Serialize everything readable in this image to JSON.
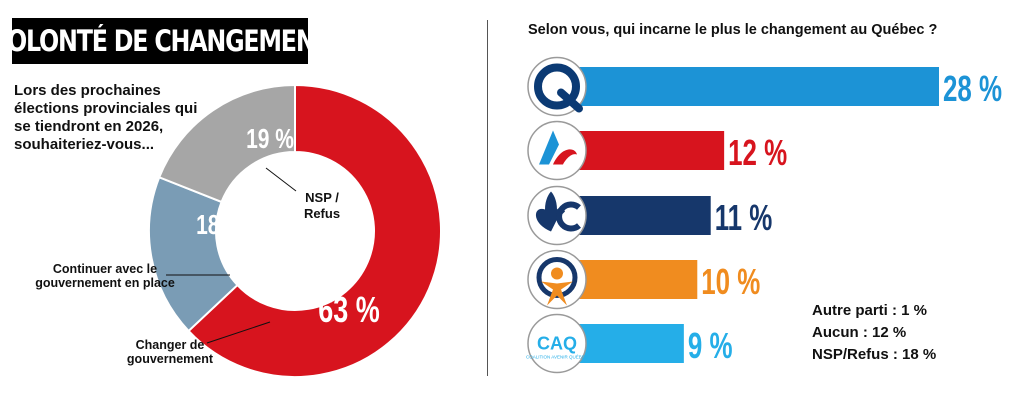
{
  "left": {
    "title": "VOLONTÉ DE CHANGEMENT",
    "question": "Lors des prochaines élections provinciales qui se tiendront en 2026, souhaiteriez-vous...",
    "labels": {
      "nsp": "NSP / Refus",
      "continuer": "Continuer avec le gouvernement en place",
      "changer": "Changer de gouvernement"
    }
  },
  "right": {
    "title": "Selon vous, qui incarne le plus le changement au Québec ?",
    "other_lines": [
      "Autre parti : 1 %",
      "Aucun : 12 %",
      "NSP/Refus : 18 %"
    ]
  },
  "chart_data": [
    {
      "type": "pie",
      "title": "VOLONTÉ DE CHANGEMENT",
      "categories": [
        "Changer de gouvernement",
        "Continuer avec le gouvernement en place",
        "NSP / Refus"
      ],
      "values": [
        63,
        18,
        19
      ],
      "value_labels": [
        "63 %",
        "18 %",
        "19 %"
      ],
      "colors": [
        "#d7141e",
        "#7a9cb5",
        "#a6a6a6"
      ]
    },
    {
      "type": "bar",
      "title": "Selon vous, qui incarne le plus le changement au Québec ?",
      "categories": [
        "Parti Québécois",
        "Parti libéral du Québec",
        "Parti conservateur du Québec",
        "Québec solidaire",
        "CAQ"
      ],
      "values": [
        28,
        12,
        11,
        10,
        9
      ],
      "value_labels": [
        "28 %",
        "12 %",
        "11 %",
        "10 %",
        "9 %"
      ],
      "colors": [
        "#1c93d6",
        "#d7141e",
        "#16376b",
        "#f08c1f",
        "#25aee8"
      ],
      "icons": [
        "pq-logo-icon",
        "plq-logo-icon",
        "pcq-logo-icon",
        "qs-logo-icon",
        "caq-logo-icon"
      ],
      "icon_text": [
        "",
        "",
        "",
        "",
        "CAQ"
      ],
      "icon_small_text": [
        "",
        "",
        "",
        "",
        "COALITION AVENIR QUÉBEC"
      ],
      "xlim": [
        0,
        28
      ]
    }
  ]
}
